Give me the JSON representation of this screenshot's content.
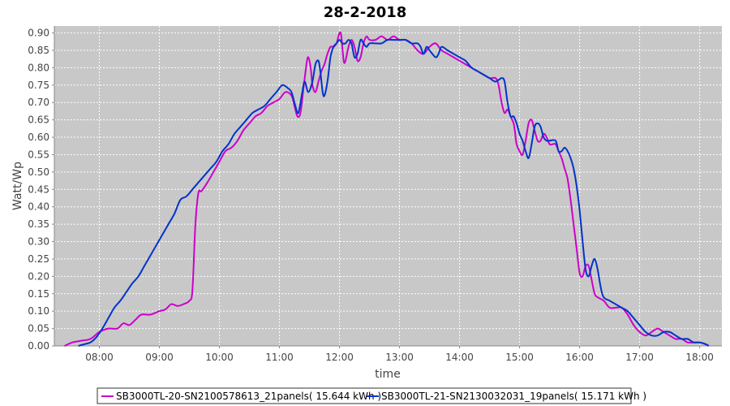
{
  "chart_data": {
    "type": "line",
    "title": "28-2-2018",
    "xlabel": "time",
    "ylabel": "Watt/Wp",
    "x_unit": "hours",
    "xlim": [
      7.25,
      18.37
    ],
    "ylim": [
      0.0,
      0.92
    ],
    "x_ticks": [
      {
        "label": "08:00",
        "value": 8
      },
      {
        "label": "09:00",
        "value": 9
      },
      {
        "label": "10:00",
        "value": 10
      },
      {
        "label": "11:00",
        "value": 11
      },
      {
        "label": "12:00",
        "value": 12
      },
      {
        "label": "13:00",
        "value": 13
      },
      {
        "label": "14:00",
        "value": 14
      },
      {
        "label": "15:00",
        "value": 15
      },
      {
        "label": "16:00",
        "value": 16
      },
      {
        "label": "17:00",
        "value": 17
      },
      {
        "label": "18:00",
        "value": 18
      }
    ],
    "y_ticks": [
      "0.00",
      "0.05",
      "0.10",
      "0.15",
      "0.20",
      "0.25",
      "0.30",
      "0.35",
      "0.40",
      "0.45",
      "0.50",
      "0.55",
      "0.60",
      "0.65",
      "0.70",
      "0.75",
      "0.80",
      "0.85",
      "0.90"
    ],
    "grid": true,
    "legend_position": "bottom",
    "series": [
      {
        "name": "SB3000TL-20-SN2100578613_21panels( 15.644 kWh )",
        "color": "#cc00cc",
        "points": [
          [
            7.42,
            0.0
          ],
          [
            7.55,
            0.01
          ],
          [
            7.7,
            0.015
          ],
          [
            7.85,
            0.02
          ],
          [
            8.0,
            0.04
          ],
          [
            8.15,
            0.05
          ],
          [
            8.3,
            0.05
          ],
          [
            8.4,
            0.065
          ],
          [
            8.5,
            0.06
          ],
          [
            8.6,
            0.075
          ],
          [
            8.7,
            0.09
          ],
          [
            8.85,
            0.09
          ],
          [
            9.0,
            0.1
          ],
          [
            9.1,
            0.105
          ],
          [
            9.2,
            0.12
          ],
          [
            9.3,
            0.115
          ],
          [
            9.4,
            0.12
          ],
          [
            9.5,
            0.13
          ],
          [
            9.55,
            0.16
          ],
          [
            9.6,
            0.35
          ],
          [
            9.65,
            0.44
          ],
          [
            9.7,
            0.445
          ],
          [
            9.8,
            0.47
          ],
          [
            9.9,
            0.5
          ],
          [
            10.0,
            0.53
          ],
          [
            10.1,
            0.56
          ],
          [
            10.2,
            0.57
          ],
          [
            10.3,
            0.59
          ],
          [
            10.4,
            0.62
          ],
          [
            10.5,
            0.64
          ],
          [
            10.6,
            0.66
          ],
          [
            10.7,
            0.67
          ],
          [
            10.8,
            0.69
          ],
          [
            10.9,
            0.7
          ],
          [
            11.0,
            0.71
          ],
          [
            11.1,
            0.73
          ],
          [
            11.2,
            0.72
          ],
          [
            11.25,
            0.69
          ],
          [
            11.3,
            0.66
          ],
          [
            11.35,
            0.67
          ],
          [
            11.4,
            0.74
          ],
          [
            11.45,
            0.81
          ],
          [
            11.48,
            0.83
          ],
          [
            11.52,
            0.8
          ],
          [
            11.55,
            0.75
          ],
          [
            11.6,
            0.73
          ],
          [
            11.65,
            0.76
          ],
          [
            11.7,
            0.79
          ],
          [
            11.75,
            0.81
          ],
          [
            11.8,
            0.84
          ],
          [
            11.85,
            0.86
          ],
          [
            11.9,
            0.86
          ],
          [
            11.95,
            0.87
          ],
          [
            12.0,
            0.9
          ],
          [
            12.03,
            0.89
          ],
          [
            12.07,
            0.82
          ],
          [
            12.1,
            0.82
          ],
          [
            12.15,
            0.86
          ],
          [
            12.2,
            0.88
          ],
          [
            12.25,
            0.86
          ],
          [
            12.3,
            0.82
          ],
          [
            12.35,
            0.83
          ],
          [
            12.4,
            0.87
          ],
          [
            12.45,
            0.89
          ],
          [
            12.5,
            0.88
          ],
          [
            12.6,
            0.88
          ],
          [
            12.7,
            0.89
          ],
          [
            12.8,
            0.88
          ],
          [
            12.9,
            0.89
          ],
          [
            13.0,
            0.88
          ],
          [
            13.1,
            0.88
          ],
          [
            13.2,
            0.87
          ],
          [
            13.3,
            0.85
          ],
          [
            13.4,
            0.84
          ],
          [
            13.5,
            0.86
          ],
          [
            13.6,
            0.87
          ],
          [
            13.7,
            0.85
          ],
          [
            13.8,
            0.84
          ],
          [
            13.9,
            0.83
          ],
          [
            14.0,
            0.82
          ],
          [
            14.1,
            0.81
          ],
          [
            14.2,
            0.8
          ],
          [
            14.3,
            0.79
          ],
          [
            14.4,
            0.78
          ],
          [
            14.5,
            0.77
          ],
          [
            14.6,
            0.77
          ],
          [
            14.65,
            0.75
          ],
          [
            14.7,
            0.7
          ],
          [
            14.75,
            0.67
          ],
          [
            14.8,
            0.68
          ],
          [
            14.85,
            0.66
          ],
          [
            14.9,
            0.64
          ],
          [
            14.92,
            0.62
          ],
          [
            14.95,
            0.58
          ],
          [
            15.0,
            0.56
          ],
          [
            15.05,
            0.55
          ],
          [
            15.1,
            0.59
          ],
          [
            15.15,
            0.64
          ],
          [
            15.2,
            0.65
          ],
          [
            15.25,
            0.62
          ],
          [
            15.3,
            0.59
          ],
          [
            15.35,
            0.59
          ],
          [
            15.4,
            0.61
          ],
          [
            15.45,
            0.6
          ],
          [
            15.5,
            0.58
          ],
          [
            15.55,
            0.58
          ],
          [
            15.6,
            0.58
          ],
          [
            15.65,
            0.56
          ],
          [
            15.7,
            0.54
          ],
          [
            15.75,
            0.51
          ],
          [
            15.8,
            0.48
          ],
          [
            15.85,
            0.42
          ],
          [
            15.9,
            0.35
          ],
          [
            15.95,
            0.28
          ],
          [
            16.0,
            0.21
          ],
          [
            16.05,
            0.2
          ],
          [
            16.1,
            0.23
          ],
          [
            16.15,
            0.23
          ],
          [
            16.2,
            0.19
          ],
          [
            16.25,
            0.15
          ],
          [
            16.3,
            0.14
          ],
          [
            16.4,
            0.13
          ],
          [
            16.5,
            0.11
          ],
          [
            16.6,
            0.11
          ],
          [
            16.7,
            0.11
          ],
          [
            16.8,
            0.09
          ],
          [
            16.9,
            0.06
          ],
          [
            17.0,
            0.04
          ],
          [
            17.1,
            0.03
          ],
          [
            17.2,
            0.04
          ],
          [
            17.3,
            0.05
          ],
          [
            17.4,
            0.04
          ],
          [
            17.5,
            0.03
          ],
          [
            17.6,
            0.02
          ],
          [
            17.7,
            0.02
          ],
          [
            17.8,
            0.01
          ],
          [
            17.9,
            0.01
          ],
          [
            18.0,
            0.01
          ],
          [
            18.1,
            0.005
          ],
          [
            18.15,
            0.0
          ]
        ]
      },
      {
        "name": "SB3000TL-21-SN2130032031_19panels( 15.171 kWh )",
        "color": "#0033cc",
        "points": [
          [
            7.65,
            0.0
          ],
          [
            7.75,
            0.005
          ],
          [
            7.85,
            0.01
          ],
          [
            7.95,
            0.025
          ],
          [
            8.05,
            0.05
          ],
          [
            8.15,
            0.08
          ],
          [
            8.25,
            0.11
          ],
          [
            8.35,
            0.13
          ],
          [
            8.45,
            0.155
          ],
          [
            8.55,
            0.18
          ],
          [
            8.65,
            0.2
          ],
          [
            8.75,
            0.23
          ],
          [
            8.85,
            0.26
          ],
          [
            8.95,
            0.29
          ],
          [
            9.05,
            0.32
          ],
          [
            9.15,
            0.35
          ],
          [
            9.25,
            0.38
          ],
          [
            9.35,
            0.42
          ],
          [
            9.45,
            0.43
          ],
          [
            9.55,
            0.45
          ],
          [
            9.65,
            0.47
          ],
          [
            9.75,
            0.49
          ],
          [
            9.85,
            0.51
          ],
          [
            9.95,
            0.53
          ],
          [
            10.05,
            0.56
          ],
          [
            10.15,
            0.58
          ],
          [
            10.25,
            0.61
          ],
          [
            10.35,
            0.63
          ],
          [
            10.45,
            0.65
          ],
          [
            10.55,
            0.67
          ],
          [
            10.65,
            0.68
          ],
          [
            10.75,
            0.69
          ],
          [
            10.85,
            0.71
          ],
          [
            10.95,
            0.73
          ],
          [
            11.05,
            0.75
          ],
          [
            11.15,
            0.74
          ],
          [
            11.2,
            0.73
          ],
          [
            11.25,
            0.7
          ],
          [
            11.3,
            0.67
          ],
          [
            11.33,
            0.68
          ],
          [
            11.38,
            0.73
          ],
          [
            11.42,
            0.76
          ],
          [
            11.48,
            0.73
          ],
          [
            11.55,
            0.76
          ],
          [
            11.6,
            0.81
          ],
          [
            11.65,
            0.82
          ],
          [
            11.68,
            0.79
          ],
          [
            11.72,
            0.73
          ],
          [
            11.75,
            0.72
          ],
          [
            11.8,
            0.76
          ],
          [
            11.85,
            0.83
          ],
          [
            11.9,
            0.86
          ],
          [
            11.95,
            0.87
          ],
          [
            12.0,
            0.88
          ],
          [
            12.05,
            0.87
          ],
          [
            12.1,
            0.87
          ],
          [
            12.15,
            0.88
          ],
          [
            12.2,
            0.87
          ],
          [
            12.25,
            0.83
          ],
          [
            12.3,
            0.84
          ],
          [
            12.35,
            0.88
          ],
          [
            12.4,
            0.87
          ],
          [
            12.45,
            0.86
          ],
          [
            12.5,
            0.87
          ],
          [
            12.6,
            0.87
          ],
          [
            12.7,
            0.87
          ],
          [
            12.8,
            0.88
          ],
          [
            12.9,
            0.88
          ],
          [
            13.0,
            0.88
          ],
          [
            13.1,
            0.88
          ],
          [
            13.2,
            0.87
          ],
          [
            13.3,
            0.87
          ],
          [
            13.35,
            0.86
          ],
          [
            13.4,
            0.84
          ],
          [
            13.45,
            0.86
          ],
          [
            13.5,
            0.85
          ],
          [
            13.6,
            0.83
          ],
          [
            13.65,
            0.84
          ],
          [
            13.7,
            0.86
          ],
          [
            13.8,
            0.85
          ],
          [
            13.9,
            0.84
          ],
          [
            14.0,
            0.83
          ],
          [
            14.1,
            0.82
          ],
          [
            14.2,
            0.8
          ],
          [
            14.3,
            0.79
          ],
          [
            14.4,
            0.78
          ],
          [
            14.5,
            0.77
          ],
          [
            14.6,
            0.76
          ],
          [
            14.7,
            0.77
          ],
          [
            14.75,
            0.76
          ],
          [
            14.8,
            0.7
          ],
          [
            14.85,
            0.66
          ],
          [
            14.9,
            0.66
          ],
          [
            14.95,
            0.64
          ],
          [
            15.0,
            0.61
          ],
          [
            15.05,
            0.59
          ],
          [
            15.1,
            0.56
          ],
          [
            15.15,
            0.54
          ],
          [
            15.2,
            0.58
          ],
          [
            15.25,
            0.63
          ],
          [
            15.3,
            0.64
          ],
          [
            15.35,
            0.63
          ],
          [
            15.4,
            0.6
          ],
          [
            15.45,
            0.59
          ],
          [
            15.5,
            0.59
          ],
          [
            15.6,
            0.59
          ],
          [
            15.65,
            0.56
          ],
          [
            15.7,
            0.56
          ],
          [
            15.75,
            0.57
          ],
          [
            15.8,
            0.56
          ],
          [
            15.85,
            0.54
          ],
          [
            15.9,
            0.51
          ],
          [
            15.95,
            0.46
          ],
          [
            16.0,
            0.39
          ],
          [
            16.05,
            0.3
          ],
          [
            16.1,
            0.22
          ],
          [
            16.15,
            0.2
          ],
          [
            16.2,
            0.23
          ],
          [
            16.25,
            0.25
          ],
          [
            16.3,
            0.22
          ],
          [
            16.35,
            0.17
          ],
          [
            16.4,
            0.14
          ],
          [
            16.5,
            0.13
          ],
          [
            16.6,
            0.12
          ],
          [
            16.7,
            0.11
          ],
          [
            16.8,
            0.1
          ],
          [
            16.9,
            0.08
          ],
          [
            17.0,
            0.06
          ],
          [
            17.1,
            0.04
          ],
          [
            17.2,
            0.03
          ],
          [
            17.3,
            0.03
          ],
          [
            17.4,
            0.04
          ],
          [
            17.5,
            0.04
          ],
          [
            17.6,
            0.03
          ],
          [
            17.7,
            0.02
          ],
          [
            17.8,
            0.02
          ],
          [
            17.9,
            0.01
          ],
          [
            18.0,
            0.01
          ],
          [
            18.1,
            0.005
          ],
          [
            18.15,
            0.0
          ]
        ]
      }
    ]
  }
}
